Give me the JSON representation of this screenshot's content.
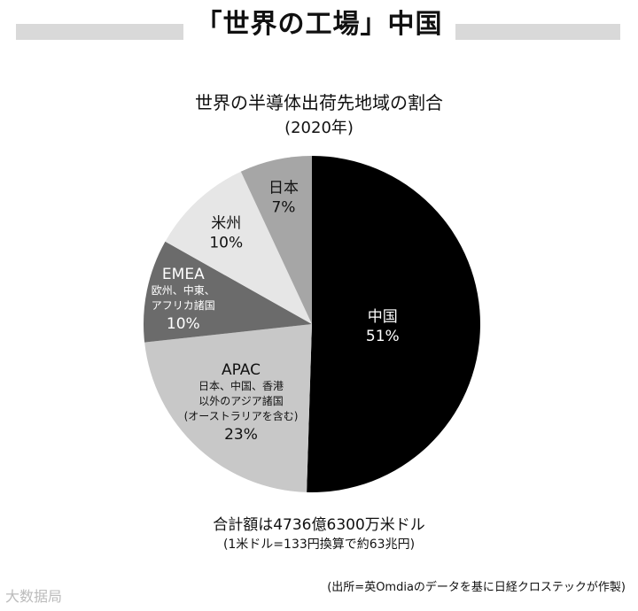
{
  "header": {
    "title": "「世界の工場」中国"
  },
  "chart_data": {
    "type": "pie",
    "title": "世界の半導体出荷先地域の割合",
    "subtitle": "(2020年)",
    "slices": [
      {
        "name": "中国",
        "value": 51,
        "label": "51%",
        "detail": [],
        "color": "#000000",
        "text_color": "#ffffff"
      },
      {
        "name": "APAC",
        "value": 23,
        "label": "23%",
        "detail": [
          "日本、中国、香港",
          "以外のアジア諸国",
          "(オーストラリアを含む)"
        ],
        "color": "#c8c8c8",
        "text_color": "#111111"
      },
      {
        "name": "EMEA",
        "value": 10,
        "label": "10%",
        "detail": [
          "欧州、中東、",
          "アフリカ諸国"
        ],
        "color": "#6b6b6b",
        "text_color": "#ffffff"
      },
      {
        "name": "米州",
        "value": 10,
        "label": "10%",
        "detail": [],
        "color": "#e6e6e6",
        "text_color": "#111111"
      },
      {
        "name": "日本",
        "value": 7,
        "label": "7%",
        "detail": [],
        "color": "#a6a6a6",
        "text_color": "#111111"
      }
    ],
    "legend": "none"
  },
  "footer": {
    "total": "合計額は4736億6300万米ドル",
    "total_note": "(1米ドル=133円換算で約63兆円)",
    "source": "(出所=英Omdiaのデータを基に日経クロステックが作製)",
    "watermark": "大数据局"
  }
}
